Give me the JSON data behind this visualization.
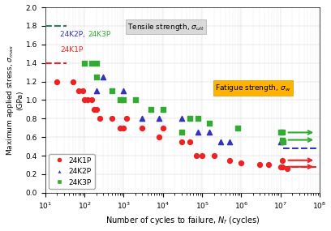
{
  "xlabel": "Number of cycles to failure, $N_f$ (cycles)",
  "ylabel": "Maximum applied stress, $\\sigma_{max}$\n(GPa)",
  "xlim": [
    10,
    100000000.0
  ],
  "ylim": [
    0,
    2.0
  ],
  "yticks": [
    0,
    0.2,
    0.4,
    0.6,
    0.8,
    1.0,
    1.2,
    1.4,
    1.6,
    1.8,
    2.0
  ],
  "K1P_x": [
    20,
    50,
    70,
    90,
    100,
    120,
    150,
    180,
    200,
    250,
    500,
    800,
    1000,
    1200,
    3000,
    8000,
    10000,
    30000,
    50000,
    70000,
    100000,
    200000,
    500000,
    1000000,
    3000000,
    5000000,
    10000000,
    15000000
  ],
  "K1P_y": [
    1.2,
    1.2,
    1.1,
    1.1,
    1.0,
    1.0,
    1.0,
    0.9,
    0.9,
    0.8,
    0.8,
    0.7,
    0.7,
    0.8,
    0.7,
    0.6,
    0.7,
    0.55,
    0.55,
    0.4,
    0.4,
    0.4,
    0.35,
    0.32,
    0.3,
    0.3,
    0.28,
    0.26
  ],
  "K2P_x": [
    200,
    300,
    1000,
    3000,
    8000,
    30000,
    80000,
    150000,
    300000,
    500000,
    10000000
  ],
  "K2P_y": [
    1.1,
    1.25,
    1.1,
    0.8,
    0.8,
    0.8,
    0.65,
    0.65,
    0.55,
    0.55,
    0.55
  ],
  "K3P_x": [
    100,
    150,
    200,
    200,
    500,
    800,
    1000,
    2000,
    5000,
    10000,
    30000,
    50000,
    80000,
    150000,
    800000,
    10000000,
    12000000
  ],
  "K3P_y": [
    1.4,
    1.4,
    1.4,
    1.25,
    1.1,
    1.0,
    1.0,
    1.0,
    0.9,
    0.9,
    0.65,
    0.8,
    0.8,
    0.75,
    0.7,
    0.65,
    0.55
  ],
  "tensile_K1P_y": 1.4,
  "tensile_K23P_y": 1.8,
  "fatigue_K1P_y": 0.28,
  "fatigue_K2P_y": 0.48,
  "fatigue_K3P_high_y": 0.65,
  "fatigue_K3P_low_y": 0.57,
  "fatigue_K1P_high_y": 0.35,
  "fatigue_K1P_low_y": 0.28,
  "c1": "#ee2222",
  "c2": "#3333bb",
  "c3": "#33aa33",
  "bg": "#ffffff",
  "plot_bg": "#ffffff"
}
